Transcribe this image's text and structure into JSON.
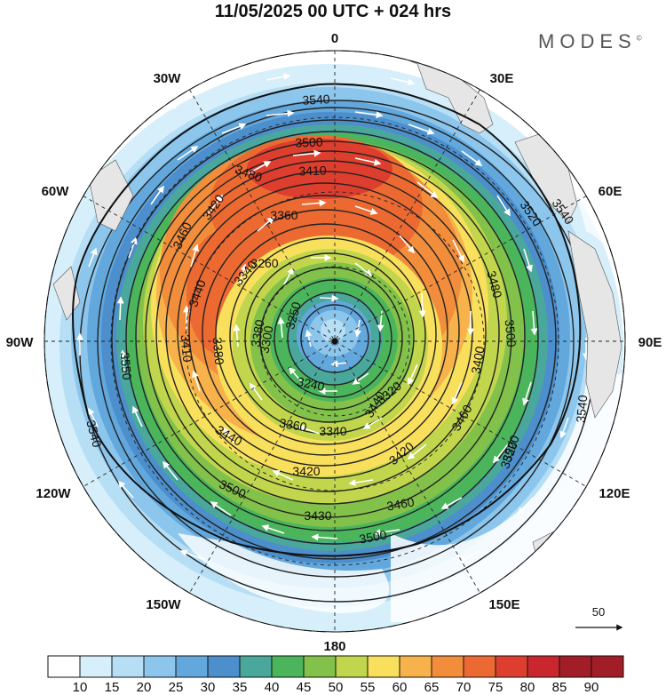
{
  "title": "11/05/2025  00 UTC  + 024 hrs",
  "brand": "MODES",
  "brand_mark": "©",
  "longitude_labels": [
    {
      "id": "lon-0",
      "text": "0"
    },
    {
      "id": "lon-30e",
      "text": "30E"
    },
    {
      "id": "lon-60e",
      "text": "60E"
    },
    {
      "id": "lon-90e",
      "text": "90E"
    },
    {
      "id": "lon-120e",
      "text": "120E"
    },
    {
      "id": "lon-150e",
      "text": "150E"
    },
    {
      "id": "lon-180",
      "text": "180"
    },
    {
      "id": "lon-150w",
      "text": "150W"
    },
    {
      "id": "lon-120w",
      "text": "120W"
    },
    {
      "id": "lon-90w",
      "text": "90W"
    },
    {
      "id": "lon-60w",
      "text": "60W"
    },
    {
      "id": "lon-30w",
      "text": "30W"
    }
  ],
  "contour_labels": [
    "3540",
    "3500",
    "3480",
    "3410",
    "3520",
    "3540",
    "3480",
    "3500",
    "3400",
    "3460",
    "3520",
    "3540",
    "3500",
    "3460",
    "3430",
    "3420",
    "3440",
    "3340",
    "3360",
    "3320",
    "3240",
    "3420",
    "3440",
    "3500",
    "3520",
    "3540",
    "3550",
    "3410",
    "3440",
    "3460",
    "3420",
    "3360",
    "3340",
    "3260",
    "3250",
    "3380",
    "3380",
    "3300"
  ],
  "vector_reference": {
    "label": "50"
  },
  "colorbar": {
    "labels": [
      "10",
      "15",
      "20",
      "25",
      "30",
      "35",
      "40",
      "45",
      "50",
      "55",
      "60",
      "65",
      "70",
      "75",
      "80",
      "85",
      "90"
    ],
    "colors": [
      "#ffffff",
      "#d6effa",
      "#b6def5",
      "#8cc6ec",
      "#63a8dd",
      "#4c8fcc",
      "#4aa79b",
      "#4bb55c",
      "#82c24a",
      "#c1d64c",
      "#f9e05c",
      "#f7b24b",
      "#f28d3c",
      "#ec6a32",
      "#dd3e2e",
      "#c9262d",
      "#a11d27"
    ]
  },
  "chart_data": {
    "type": "heatmap",
    "title": "11/05/2025  00 UTC  + 024 hrs",
    "projection": "north polar stereographic",
    "shaded_field_levels": [
      10,
      15,
      20,
      25,
      30,
      35,
      40,
      45,
      50,
      55,
      60,
      65,
      70,
      75,
      80,
      85,
      90
    ],
    "contour_levels": [
      3240,
      3250,
      3260,
      3300,
      3320,
      3340,
      3360,
      3380,
      3400,
      3410,
      3420,
      3430,
      3440,
      3460,
      3480,
      3500,
      3520,
      3540,
      3550
    ],
    "vector_reference_speed": 50,
    "center": "north pole"
  }
}
